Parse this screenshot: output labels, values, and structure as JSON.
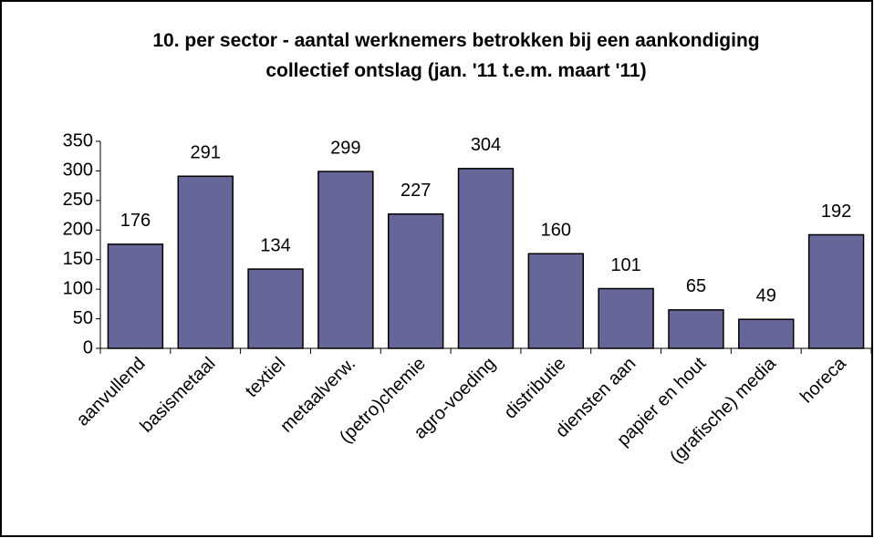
{
  "chart_data": {
    "type": "bar",
    "title": "10. per sector - aantal werknemers betrokken bij een aankondiging collectief ontslag (jan. '11 t.e.m. maart '11)",
    "categories": [
      "aanvullend",
      "basismetaal",
      "textiel",
      "metaalverw.",
      "(petro)chemie",
      "agro-voeding",
      "distributie",
      "diensten aan",
      "papier en hout",
      "(grafische) media",
      "horeca"
    ],
    "values": [
      176,
      291,
      134,
      299,
      227,
      304,
      160,
      101,
      65,
      49,
      192
    ],
    "color": "#666699",
    "ylim": [
      0,
      350
    ],
    "yticks": [
      0,
      50,
      100,
      150,
      200,
      250,
      300,
      350
    ],
    "grid": false
  }
}
